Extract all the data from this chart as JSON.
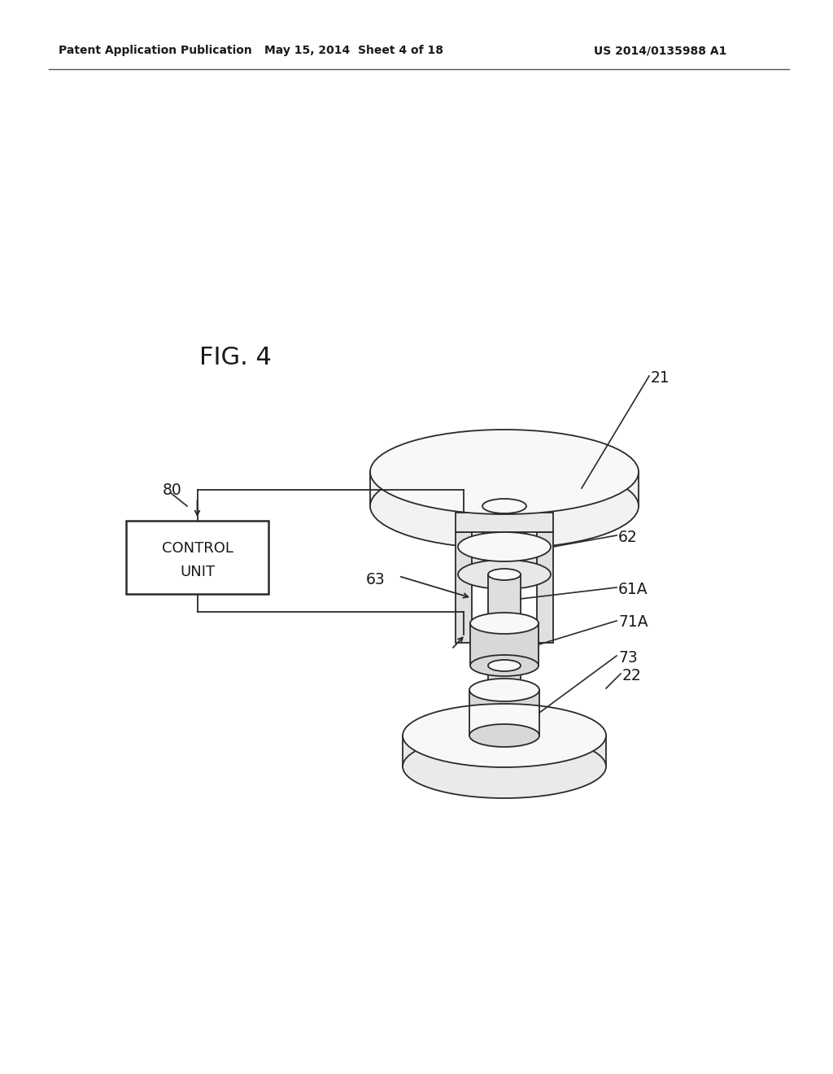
{
  "bg_color": "#ffffff",
  "header_left": "Patent Application Publication",
  "header_mid": "May 15, 2014  Sheet 4 of 18",
  "header_right": "US 2014/0135988 A1",
  "fig_label": "FIG. 4",
  "ec": "#2a2a2a",
  "lw": 1.3
}
